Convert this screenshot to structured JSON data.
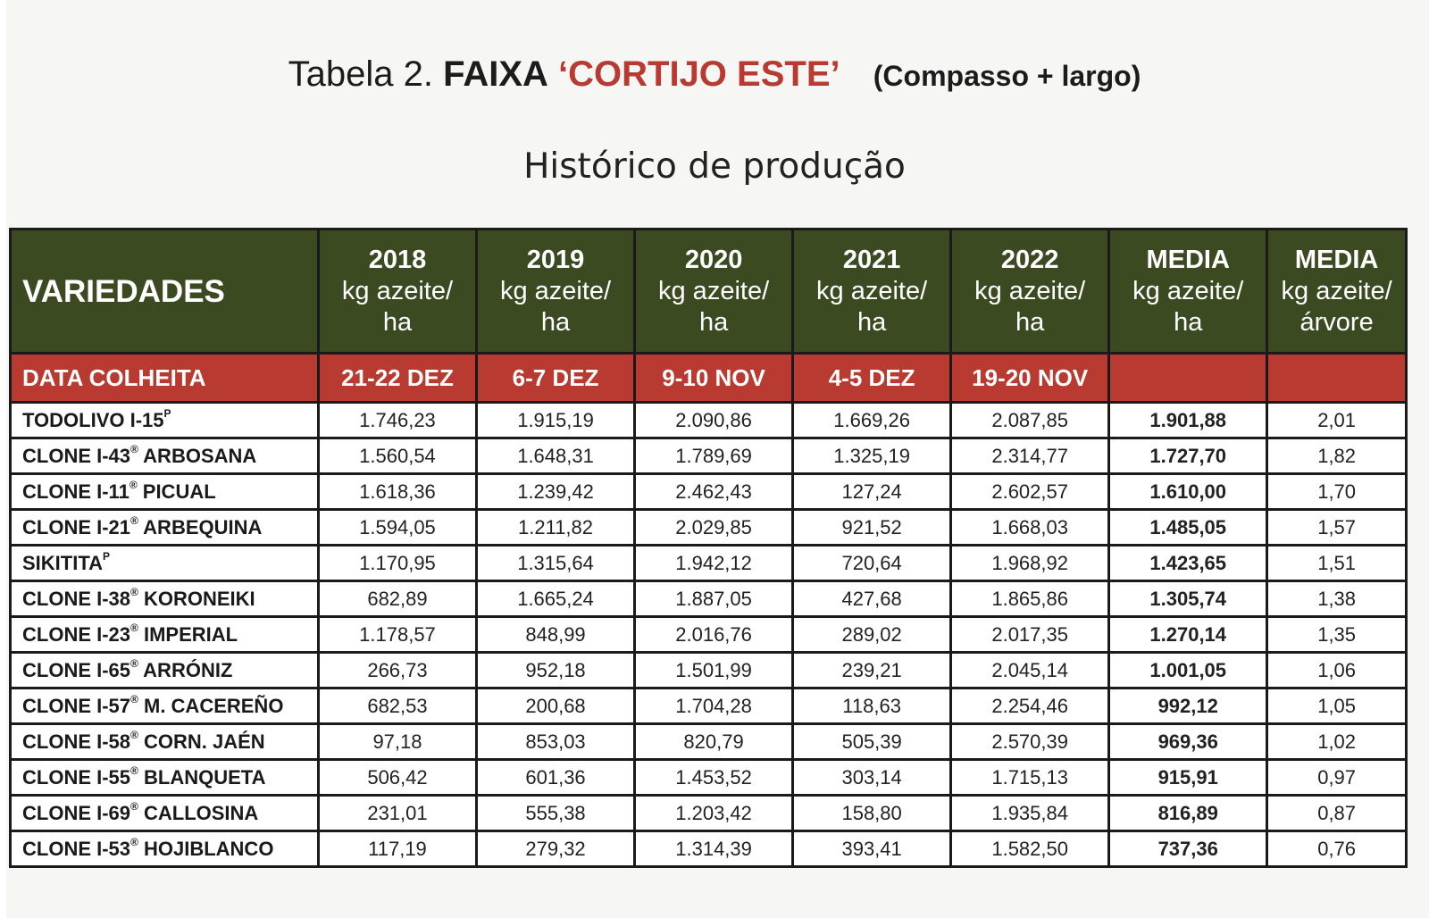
{
  "title": {
    "prefix": "Tabela 2.",
    "bold": "FAIXA",
    "highlight": "‘CORTIJO ESTE’",
    "note": "(Compasso + largo)"
  },
  "subtitle": "Histórico de produção",
  "header": {
    "varieties": "VARIEDADES",
    "columns": [
      {
        "year": "2018",
        "unit1": "kg azeite/",
        "unit2": "ha"
      },
      {
        "year": "2019",
        "unit1": "kg azeite/",
        "unit2": "ha"
      },
      {
        "year": "2020",
        "unit1": "kg azeite/",
        "unit2": "ha"
      },
      {
        "year": "2021",
        "unit1": "kg azeite/",
        "unit2": "ha"
      },
      {
        "year": "2022",
        "unit1": "kg azeite/",
        "unit2": "ha"
      },
      {
        "year": "MEDIA",
        "unit1": "kg azeite/",
        "unit2": "ha"
      },
      {
        "year": "MEDIA",
        "unit1": "kg azeite/",
        "unit2": "árvore"
      }
    ]
  },
  "harvest": {
    "label": "DATA COLHEITA",
    "dates": [
      "21-22 DEZ",
      "6-7 DEZ",
      "9-10 NOV",
      "4-5 DEZ",
      "19-20 NOV",
      "",
      ""
    ]
  },
  "rows": [
    {
      "name": "TODOLIVO I-15",
      "mark": "P",
      "suffix": "",
      "values": [
        "1.746,23",
        "1.915,19",
        "2.090,86",
        "1.669,26",
        "2.087,85"
      ],
      "avg_ha": "1.901,88",
      "avg_tree": "2,01"
    },
    {
      "name": "CLONE I-43",
      "mark": "®",
      "suffix": " ARBOSANA",
      "values": [
        "1.560,54",
        "1.648,31",
        "1.789,69",
        "1.325,19",
        "2.314,77"
      ],
      "avg_ha": "1.727,70",
      "avg_tree": "1,82"
    },
    {
      "name": "CLONE I-11",
      "mark": "®",
      "suffix": " PICUAL",
      "values": [
        "1.618,36",
        "1.239,42",
        "2.462,43",
        "127,24",
        "2.602,57"
      ],
      "avg_ha": "1.610,00",
      "avg_tree": "1,70"
    },
    {
      "name": "CLONE I-21",
      "mark": "®",
      "suffix": " ARBEQUINA",
      "values": [
        "1.594,05",
        "1.211,82",
        "2.029,85",
        "921,52",
        "1.668,03"
      ],
      "avg_ha": "1.485,05",
      "avg_tree": "1,57"
    },
    {
      "name": "SIKITITA",
      "mark": "P",
      "suffix": "",
      "values": [
        "1.170,95",
        "1.315,64",
        "1.942,12",
        "720,64",
        "1.968,92"
      ],
      "avg_ha": "1.423,65",
      "avg_tree": "1,51"
    },
    {
      "name": "CLONE I-38",
      "mark": "®",
      "suffix": " KORONEIKI",
      "values": [
        "682,89",
        "1.665,24",
        "1.887,05",
        "427,68",
        "1.865,86"
      ],
      "avg_ha": "1.305,74",
      "avg_tree": "1,38"
    },
    {
      "name": "CLONE I-23",
      "mark": "®",
      "suffix": " IMPERIAL",
      "values": [
        "1.178,57",
        "848,99",
        "2.016,76",
        "289,02",
        "2.017,35"
      ],
      "avg_ha": "1.270,14",
      "avg_tree": "1,35"
    },
    {
      "name": "CLONE I-65",
      "mark": "®",
      "suffix": " ARRÓNIZ",
      "values": [
        "266,73",
        "952,18",
        "1.501,99",
        "239,21",
        "2.045,14"
      ],
      "avg_ha": "1.001,05",
      "avg_tree": "1,06"
    },
    {
      "name": "CLONE I-57",
      "mark": "®",
      "suffix": " M. CACEREÑO",
      "values": [
        "682,53",
        "200,68",
        "1.704,28",
        "118,63",
        "2.254,46"
      ],
      "avg_ha": "992,12",
      "avg_tree": "1,05"
    },
    {
      "name": "CLONE I-58",
      "mark": "®",
      "suffix": " CORN. JAÉN",
      "values": [
        "97,18",
        "853,03",
        "820,79",
        "505,39",
        "2.570,39"
      ],
      "avg_ha": "969,36",
      "avg_tree": "1,02"
    },
    {
      "name": "CLONE I-55",
      "mark": "®",
      "suffix": " BLANQUETA",
      "values": [
        "506,42",
        "601,36",
        "1.453,52",
        "303,14",
        "1.715,13"
      ],
      "avg_ha": "915,91",
      "avg_tree": "0,97"
    },
    {
      "name": "CLONE I-69",
      "mark": "®",
      "suffix": " CALLOSINA",
      "values": [
        "231,01",
        "555,38",
        "1.203,42",
        "158,80",
        "1.935,84"
      ],
      "avg_ha": "816,89",
      "avg_tree": "0,87"
    },
    {
      "name": "CLONE I-53",
      "mark": "®",
      "suffix": " HOJIBLANCO",
      "values": [
        "117,19",
        "279,32",
        "1.314,39",
        "393,41",
        "1.582,50"
      ],
      "avg_ha": "737,36",
      "avg_tree": "0,76"
    }
  ]
}
